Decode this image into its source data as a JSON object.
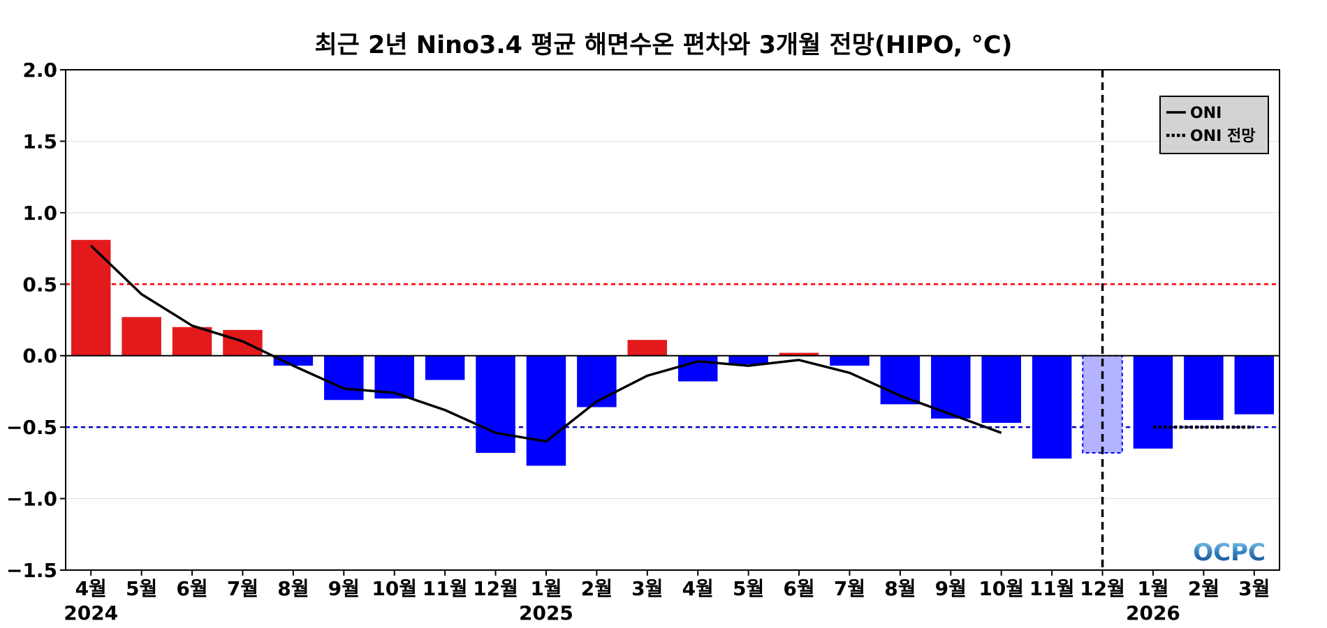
{
  "chart_data": {
    "type": "bar",
    "title": "최근 2년 Nino3.4 평균 해면수온 편차와 3개월 전망(HIPO, °C)",
    "categories": [
      "4월",
      "5월",
      "6월",
      "7월",
      "8월",
      "9월",
      "10월",
      "11월",
      "12월",
      "1월",
      "2월",
      "3월",
      "4월",
      "5월",
      "6월",
      "7월",
      "8월",
      "9월",
      "10월",
      "11월",
      "12월",
      "1월",
      "2월",
      "3월"
    ],
    "years": [
      {
        "label": "2024",
        "category_index": 0
      },
      {
        "label": "2025",
        "category_index": 9
      },
      {
        "label": "2026",
        "category_index": 21
      }
    ],
    "values": [
      0.81,
      0.27,
      0.2,
      0.18,
      -0.07,
      -0.31,
      -0.3,
      -0.17,
      -0.68,
      -0.77,
      -0.36,
      0.11,
      -0.18,
      -0.06,
      0.02,
      -0.07,
      -0.34,
      -0.44,
      -0.47,
      -0.72,
      -0.68,
      -0.65,
      -0.45,
      -0.41
    ],
    "forecast_index": 20,
    "forecast_line_index": 20,
    "oni": {
      "name": "ONI",
      "values": [
        0.77,
        0.43,
        0.21,
        0.1,
        -0.07,
        -0.23,
        -0.26,
        -0.38,
        -0.54,
        -0.6,
        -0.32,
        -0.14,
        -0.04,
        -0.07,
        -0.03,
        -0.12,
        -0.28,
        -0.41,
        -0.54,
        null,
        null,
        null,
        null,
        null
      ]
    },
    "oni_forecast": {
      "name": "ONI 전망",
      "values": [
        null,
        null,
        null,
        null,
        null,
        null,
        null,
        null,
        null,
        null,
        null,
        null,
        null,
        null,
        null,
        null,
        null,
        null,
        null,
        null,
        null,
        -0.5,
        -0.5,
        -0.5
      ]
    },
    "thresholds": [
      0.5,
      -0.5
    ],
    "ylim": [
      -1.5,
      2.0
    ],
    "yticks": [
      2.0,
      1.5,
      1.0,
      0.5,
      0.0,
      -0.5,
      -1.0,
      -1.5
    ],
    "ytick_labels": [
      "2.0",
      "1.5",
      "1.0",
      "0.5",
      "0.0",
      "−0.5",
      "−1.0",
      "−1.5"
    ],
    "grid": true,
    "legend_position": "top-right",
    "colors": {
      "positive": "#e31a1c",
      "negative": "#0000ff",
      "forecast_fill": "#b3b3ff",
      "forecast_edge": "#0000ff",
      "oni_line": "#000000",
      "warm_threshold": "#ff0000",
      "cold_threshold": "#0000cc",
      "grid": "#dddddd",
      "legend_bg": "#d3d3d3"
    },
    "logo": "OCPC"
  }
}
